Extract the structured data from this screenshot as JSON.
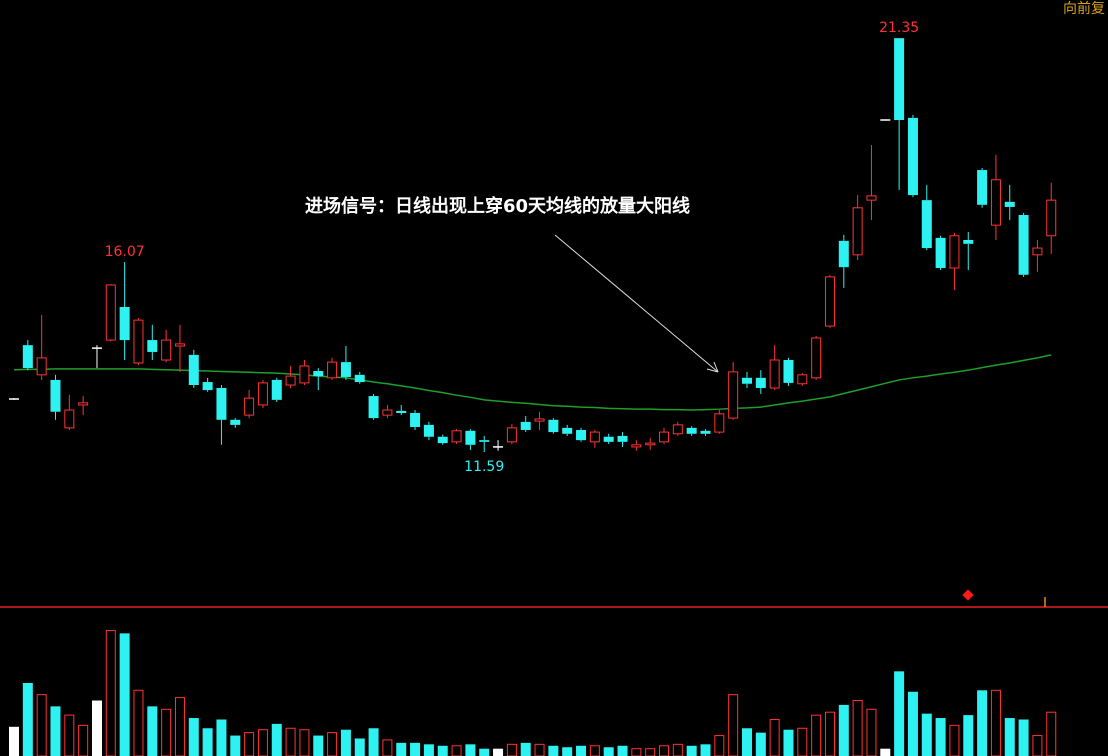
{
  "chart_data": {
    "type": "candlestick",
    "annotation": "进场信号：日线出现上穿60天均线的放量大阳线",
    "adjustment": "向前复",
    "open": [
      12.84,
      14.11,
      13.41,
      13.29,
      12.16,
      12.7,
      14.04,
      14.23,
      15.01,
      13.69,
      14.23,
      13.76,
      14.09,
      13.88,
      13.24,
      13.1,
      12.35,
      12.46,
      12.7,
      13.29,
      13.17,
      13.22,
      13.5,
      13.34,
      13.71,
      13.41,
      12.91,
      12.46,
      12.56,
      12.51,
      12.23,
      11.95,
      11.83,
      12.09,
      11.87,
      11.71,
      11.83,
      12.3,
      12.32,
      12.35,
      12.16,
      12.11,
      11.83,
      11.95,
      11.97,
      11.71,
      11.76,
      11.83,
      12.02,
      12.16,
      12.09,
      12.06,
      12.39,
      13.34,
      13.34,
      13.1,
      13.76,
      13.2,
      13.34,
      14.56,
      16.57,
      16.24,
      17.53,
      19.42,
      21.35,
      19.47,
      17.53,
      16.64,
      15.93,
      16.59,
      18.24,
      16.94,
      17.49,
      17.18,
      16.24,
      16.69
    ],
    "high": [
      12.86,
      14.23,
      14.82,
      13.41,
      12.94,
      12.91,
      14.11,
      15.55,
      16.07,
      14.75,
      14.59,
      14.47,
      14.59,
      14.0,
      13.34,
      13.17,
      12.39,
      13.05,
      13.29,
      13.34,
      13.62,
      13.76,
      13.57,
      13.81,
      14.09,
      13.48,
      12.96,
      12.7,
      12.7,
      12.58,
      12.3,
      12.0,
      12.13,
      12.13,
      11.97,
      11.87,
      12.25,
      12.44,
      12.54,
      12.39,
      12.23,
      12.16,
      12.11,
      12.02,
      12.06,
      11.87,
      11.92,
      12.16,
      12.3,
      12.2,
      12.13,
      12.58,
      13.71,
      13.48,
      13.52,
      14.11,
      13.81,
      13.45,
      14.33,
      15.77,
      16.71,
      17.65,
      18.83,
      19.42,
      21.35,
      19.54,
      17.89,
      16.69,
      16.76,
      16.78,
      18.29,
      18.6,
      17.89,
      17.23,
      16.59,
      17.94
    ],
    "low": [
      12.82,
      13.52,
      13.29,
      12.35,
      12.11,
      12.46,
      13.57,
      14.2,
      13.76,
      13.64,
      13.76,
      13.71,
      13.48,
      13.1,
      13.01,
      11.76,
      12.16,
      12.39,
      12.63,
      12.77,
      13.1,
      13.17,
      13.05,
      13.29,
      13.29,
      13.2,
      12.35,
      12.39,
      12.46,
      12.11,
      11.87,
      11.76,
      11.78,
      11.64,
      11.59,
      11.62,
      11.78,
      12.06,
      12.11,
      12.02,
      11.97,
      11.83,
      11.69,
      11.78,
      11.71,
      11.62,
      11.64,
      11.78,
      11.97,
      11.97,
      11.97,
      12.02,
      12.35,
      13.1,
      12.96,
      13.05,
      13.15,
      13.15,
      13.29,
      14.52,
      15.46,
      16.12,
      17.06,
      19.42,
      17.77,
      17.6,
      16.35,
      15.88,
      15.41,
      15.88,
      17.35,
      16.59,
      17.06,
      15.72,
      15.84,
      16.26
    ],
    "close": [
      12.84,
      13.57,
      13.81,
      12.54,
      12.58,
      12.75,
      14.04,
      15.53,
      14.23,
      14.7,
      13.95,
      14.23,
      14.14,
      13.17,
      13.05,
      12.35,
      12.23,
      12.86,
      13.22,
      12.82,
      13.38,
      13.62,
      13.38,
      13.71,
      13.36,
      13.24,
      12.39,
      12.58,
      12.51,
      12.18,
      11.95,
      11.8,
      12.09,
      11.76,
      11.83,
      11.71,
      12.16,
      12.11,
      12.37,
      12.06,
      12.02,
      11.87,
      12.06,
      11.83,
      11.83,
      11.76,
      11.8,
      12.06,
      12.23,
      12.02,
      12.02,
      12.49,
      13.48,
      13.2,
      13.1,
      13.76,
      13.22,
      13.41,
      14.28,
      15.72,
      15.95,
      17.35,
      17.63,
      19.42,
      19.42,
      17.65,
      16.4,
      15.93,
      16.69,
      16.5,
      17.42,
      18.01,
      17.37,
      15.77,
      16.4,
      17.53
    ],
    "ma": [
      13.53,
      13.54,
      13.54,
      13.55,
      13.55,
      13.55,
      13.55,
      13.55,
      13.55,
      13.55,
      13.54,
      13.53,
      13.52,
      13.51,
      13.5,
      13.49,
      13.48,
      13.47,
      13.46,
      13.45,
      13.43,
      13.41,
      13.38,
      13.36,
      13.34,
      13.29,
      13.24,
      13.2,
      13.15,
      13.1,
      13.04,
      12.99,
      12.93,
      12.88,
      12.82,
      12.79,
      12.76,
      12.74,
      12.71,
      12.68,
      12.67,
      12.65,
      12.64,
      12.62,
      12.61,
      12.6,
      12.6,
      12.59,
      12.59,
      12.58,
      12.59,
      12.6,
      12.62,
      12.63,
      12.65,
      12.7,
      12.75,
      12.79,
      12.84,
      12.89,
      12.97,
      13.05,
      13.13,
      13.21,
      13.29,
      13.34,
      13.38,
      13.43,
      13.47,
      13.52,
      13.58,
      13.64,
      13.69,
      13.75,
      13.81,
      13.88
    ],
    "volume": [
      20,
      50,
      42,
      34,
      28,
      21,
      38,
      86,
      84,
      45,
      34,
      32,
      40,
      26,
      19,
      25,
      14,
      16,
      18,
      22,
      19,
      18,
      14,
      16,
      18,
      12,
      19,
      11,
      9,
      9,
      8,
      7,
      7,
      8,
      5,
      5,
      8,
      9,
      8,
      7,
      6,
      7,
      7,
      6,
      7,
      5,
      5,
      7,
      8,
      7,
      8,
      14,
      42,
      19,
      16,
      25,
      18,
      19,
      28,
      30,
      35,
      38,
      32,
      5,
      58,
      44,
      29,
      26,
      21,
      28,
      45,
      45,
      26,
      25,
      14,
      30
    ],
    "colors": {
      "up": "#ff3333",
      "down": "#2ef2f2",
      "flat": "#ffffff"
    },
    "ma_color": "#1f9e2a",
    "ylim": [
      8.1,
      22.25
    ],
    "volume_ylim": [
      0,
      100
    ]
  }
}
